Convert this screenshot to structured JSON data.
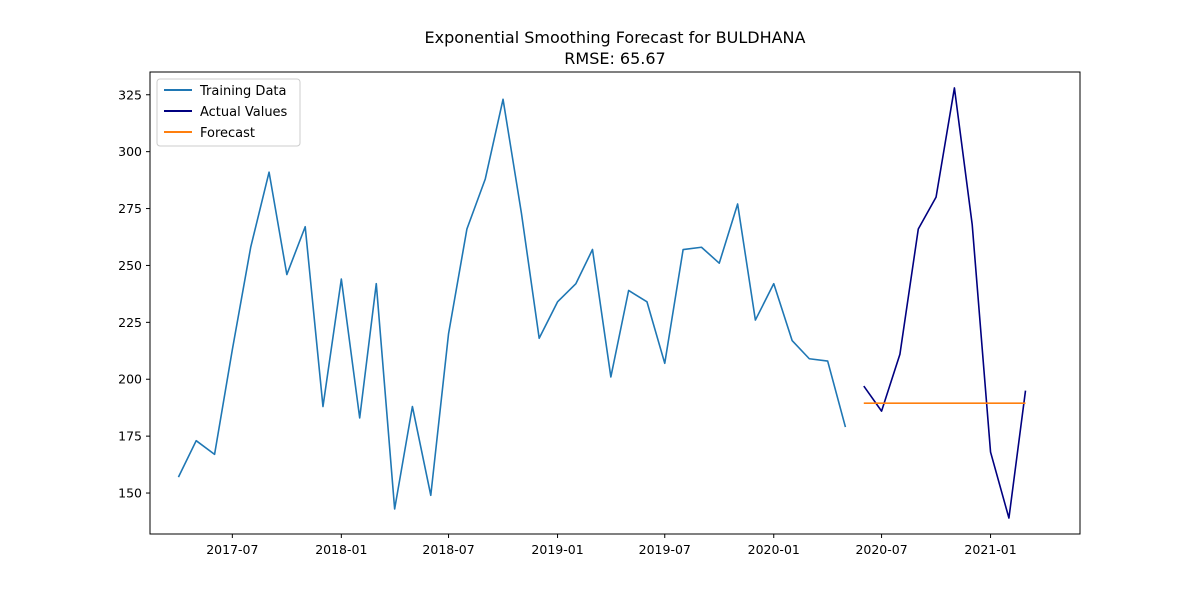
{
  "chart_data": {
    "type": "line",
    "title": "Exponential Smoothing Forecast for BULDHANA",
    "subtitle": "RMSE: 65.67",
    "xlabel": "",
    "ylabel": "",
    "x_range": [
      "2017-02-12",
      "2021-06-01"
    ],
    "ylim": [
      132,
      335
    ],
    "x_ticks": [
      {
        "date": "2017-07-01",
        "label": "2017-07"
      },
      {
        "date": "2018-01-01",
        "label": "2018-01"
      },
      {
        "date": "2018-07-01",
        "label": "2018-07"
      },
      {
        "date": "2019-01-01",
        "label": "2019-01"
      },
      {
        "date": "2019-07-01",
        "label": "2019-07"
      },
      {
        "date": "2020-01-01",
        "label": "2020-01"
      },
      {
        "date": "2020-07-01",
        "label": "2020-07"
      },
      {
        "date": "2021-01-01",
        "label": "2021-01"
      }
    ],
    "y_ticks": [
      150,
      175,
      200,
      225,
      250,
      275,
      300,
      325
    ],
    "grid": false,
    "legend_position": "top-left",
    "series": [
      {
        "name": "Training Data",
        "color": "#1f77b4",
        "points": [
          [
            "2017-04-01",
            157
          ],
          [
            "2017-05-01",
            173
          ],
          [
            "2017-06-01",
            167
          ],
          [
            "2017-07-01",
            213
          ],
          [
            "2017-08-01",
            258
          ],
          [
            "2017-09-01",
            291
          ],
          [
            "2017-10-01",
            246
          ],
          [
            "2017-11-01",
            267
          ],
          [
            "2017-12-01",
            188
          ],
          [
            "2018-01-01",
            244
          ],
          [
            "2018-02-01",
            183
          ],
          [
            "2018-03-01",
            242
          ],
          [
            "2018-04-01",
            143
          ],
          [
            "2018-05-01",
            188
          ],
          [
            "2018-06-01",
            149
          ],
          [
            "2018-07-01",
            220
          ],
          [
            "2018-08-01",
            266
          ],
          [
            "2018-09-01",
            288
          ],
          [
            "2018-10-01",
            323
          ],
          [
            "2018-11-01",
            273
          ],
          [
            "2018-12-01",
            218
          ],
          [
            "2019-01-01",
            234
          ],
          [
            "2019-02-01",
            242
          ],
          [
            "2019-03-01",
            257
          ],
          [
            "2019-04-01",
            201
          ],
          [
            "2019-05-01",
            239
          ],
          [
            "2019-06-01",
            234
          ],
          [
            "2019-07-01",
            207
          ],
          [
            "2019-08-01",
            257
          ],
          [
            "2019-09-01",
            258
          ],
          [
            "2019-10-01",
            251
          ],
          [
            "2019-11-01",
            277
          ],
          [
            "2019-12-01",
            226
          ],
          [
            "2020-01-01",
            242
          ],
          [
            "2020-02-01",
            217
          ],
          [
            "2020-03-01",
            209
          ],
          [
            "2020-04-01",
            208
          ],
          [
            "2020-05-01",
            179
          ]
        ]
      },
      {
        "name": "Actual Values",
        "color": "#000080",
        "points": [
          [
            "2020-06-01",
            197
          ],
          [
            "2020-07-01",
            186
          ],
          [
            "2020-08-01",
            211
          ],
          [
            "2020-09-01",
            266
          ],
          [
            "2020-10-01",
            280
          ],
          [
            "2020-11-01",
            328
          ],
          [
            "2020-12-01",
            268
          ],
          [
            "2021-01-01",
            168
          ],
          [
            "2021-02-01",
            139
          ],
          [
            "2021-03-01",
            195
          ]
        ]
      },
      {
        "name": "Forecast",
        "color": "#ff7f0e",
        "points": [
          [
            "2020-06-01",
            189.5
          ],
          [
            "2020-07-01",
            189.5
          ],
          [
            "2020-08-01",
            189.5
          ],
          [
            "2020-09-01",
            189.5
          ],
          [
            "2020-10-01",
            189.5
          ],
          [
            "2020-11-01",
            189.5
          ],
          [
            "2020-12-01",
            189.5
          ],
          [
            "2021-01-01",
            189.5
          ],
          [
            "2021-02-01",
            189.5
          ],
          [
            "2021-03-01",
            189.5
          ]
        ]
      }
    ]
  }
}
